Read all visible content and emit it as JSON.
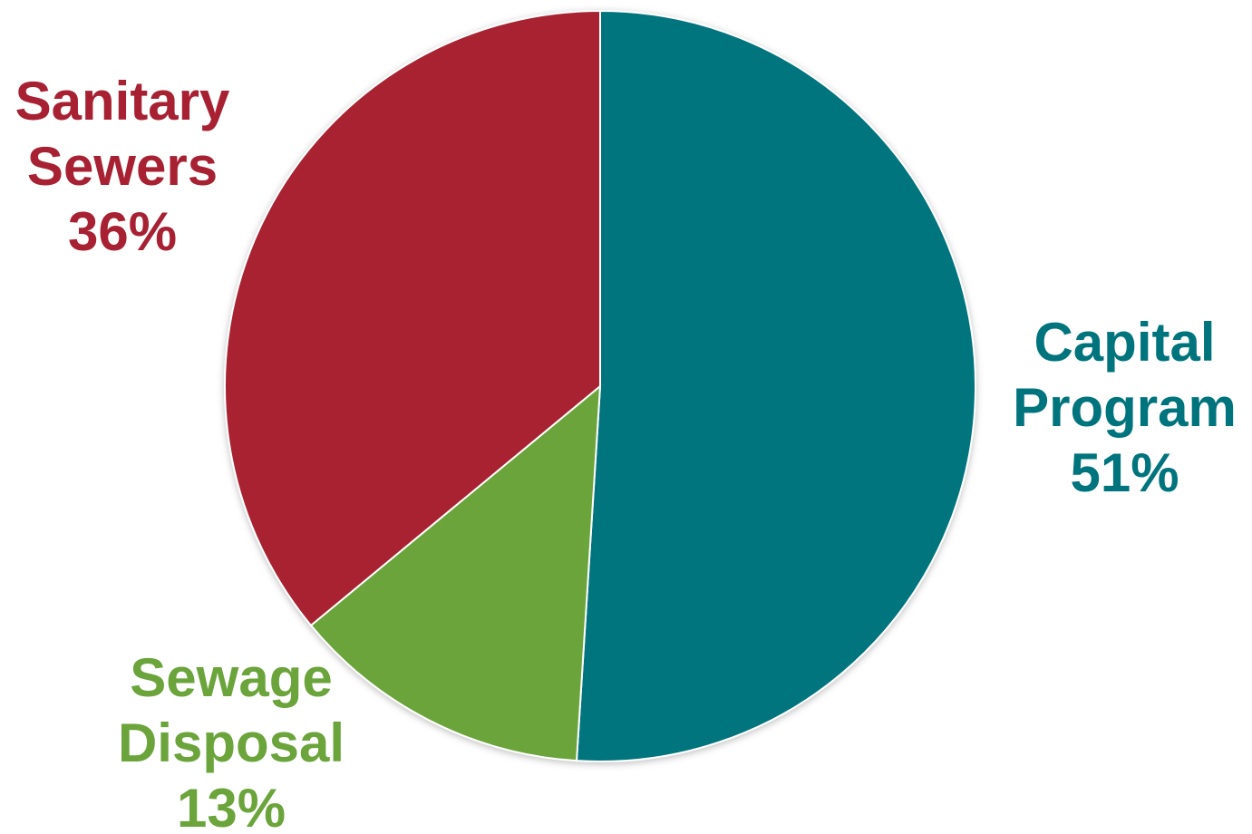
{
  "chart_data": {
    "type": "pie",
    "slices": [
      {
        "label_line1": "Capital",
        "label_line2": "Program",
        "percent_label": "51%",
        "value": 51,
        "color": "#00747d"
      },
      {
        "label_line1": "Sewage",
        "label_line2": "Disposal",
        "percent_label": "13%",
        "value": 13,
        "color": "#6aa43a"
      },
      {
        "label_line1": "Sanitary",
        "label_line2": "Sewers",
        "percent_label": "36%",
        "value": 36,
        "color": "#a82133"
      }
    ],
    "start_angle_deg": 0,
    "direction": "clockwise",
    "border_color": "#ffffff"
  }
}
